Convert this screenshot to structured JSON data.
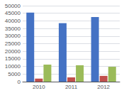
{
  "chart_data": {
    "type": "bar",
    "categories": [
      "2010",
      "2011",
      "2012"
    ],
    "series": [
      {
        "color": "#4472C4",
        "values": [
          45500,
          38500,
          42500
        ]
      },
      {
        "color": "#C0504D",
        "values": [
          2000,
          2800,
          3800
        ]
      },
      {
        "color": "#9BBB59",
        "values": [
          11200,
          10800,
          9800
        ]
      }
    ],
    "ylim": [
      0,
      50000
    ],
    "yticks": [
      0,
      5000,
      10000,
      15000,
      20000,
      25000,
      30000,
      35000,
      40000,
      45000,
      50000
    ],
    "grid": true
  }
}
